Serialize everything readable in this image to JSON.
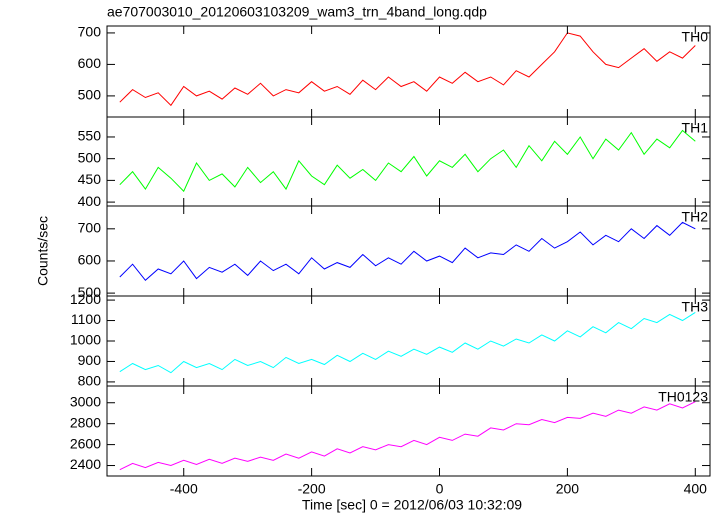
{
  "chart_data": [
    {
      "type": "line",
      "title": "ae707003010_20120603103209_wam3_trn_4band_long.qdp",
      "x": [
        -500,
        -480,
        -460,
        -440,
        -420,
        -400,
        -380,
        -360,
        -340,
        -320,
        -300,
        -280,
        -260,
        -240,
        -220,
        -200,
        -180,
        -160,
        -140,
        -120,
        -100,
        -80,
        -60,
        -40,
        -20,
        0,
        20,
        40,
        60,
        80,
        100,
        120,
        140,
        160,
        180,
        200,
        220,
        240,
        260,
        280,
        300,
        320,
        340,
        360,
        380,
        400
      ],
      "series": [
        {
          "name": "TH0",
          "color": "#ff0000",
          "values": [
            480,
            520,
            495,
            510,
            470,
            530,
            500,
            515,
            490,
            525,
            505,
            540,
            500,
            520,
            510,
            545,
            515,
            530,
            505,
            550,
            520,
            560,
            530,
            545,
            515,
            560,
            540,
            575,
            545,
            560,
            535,
            580,
            560,
            600,
            640,
            700,
            690,
            640,
            600,
            590,
            620,
            650,
            610,
            640,
            620,
            660
          ]
        }
      ],
      "ylim": [
        433,
        722
      ],
      "yticks": [
        500,
        600,
        700
      ]
    },
    {
      "type": "line",
      "x": [
        -500,
        -480,
        -460,
        -440,
        -420,
        -400,
        -380,
        -360,
        -340,
        -320,
        -300,
        -280,
        -260,
        -240,
        -220,
        -200,
        -180,
        -160,
        -140,
        -120,
        -100,
        -80,
        -60,
        -40,
        -20,
        0,
        20,
        40,
        60,
        80,
        100,
        120,
        140,
        160,
        180,
        200,
        220,
        240,
        260,
        280,
        300,
        320,
        340,
        360,
        380,
        400
      ],
      "series": [
        {
          "name": "TH1",
          "color": "#00ff00",
          "values": [
            440,
            470,
            430,
            480,
            455,
            425,
            490,
            450,
            465,
            435,
            480,
            445,
            470,
            430,
            495,
            460,
            440,
            485,
            455,
            475,
            450,
            490,
            470,
            505,
            460,
            495,
            480,
            510,
            470,
            500,
            520,
            480,
            530,
            495,
            540,
            510,
            550,
            500,
            545,
            520,
            560,
            510,
            545,
            525,
            565,
            540
          ]
        }
      ],
      "ylim": [
        391,
        596
      ],
      "yticks": [
        400,
        450,
        500,
        550
      ]
    },
    {
      "type": "line",
      "ylabel": "Counts/sec",
      "x": [
        -500,
        -480,
        -460,
        -440,
        -420,
        -400,
        -380,
        -360,
        -340,
        -320,
        -300,
        -280,
        -260,
        -240,
        -220,
        -200,
        -180,
        -160,
        -140,
        -120,
        -100,
        -80,
        -60,
        -40,
        -20,
        0,
        20,
        40,
        60,
        80,
        100,
        120,
        140,
        160,
        180,
        200,
        220,
        240,
        260,
        280,
        300,
        320,
        340,
        360,
        380,
        400
      ],
      "series": [
        {
          "name": "TH2",
          "color": "#0000ff",
          "values": [
            550,
            590,
            540,
            575,
            560,
            600,
            545,
            580,
            565,
            590,
            555,
            600,
            570,
            590,
            560,
            610,
            575,
            595,
            580,
            620,
            585,
            610,
            590,
            630,
            600,
            615,
            595,
            640,
            610,
            625,
            620,
            650,
            630,
            670,
            640,
            660,
            690,
            650,
            680,
            660,
            700,
            670,
            710,
            680,
            720,
            700
          ]
        }
      ],
      "ylim": [
        491,
        771
      ],
      "yticks": [
        500,
        600,
        700
      ]
    },
    {
      "type": "line",
      "x": [
        -500,
        -480,
        -460,
        -440,
        -420,
        -400,
        -380,
        -360,
        -340,
        -320,
        -300,
        -280,
        -260,
        -240,
        -220,
        -200,
        -180,
        -160,
        -140,
        -120,
        -100,
        -80,
        -60,
        -40,
        -20,
        0,
        20,
        40,
        60,
        80,
        100,
        120,
        140,
        160,
        180,
        200,
        220,
        240,
        260,
        280,
        300,
        320,
        340,
        360,
        380,
        400
      ],
      "series": [
        {
          "name": "TH3",
          "color": "#00ffff",
          "values": [
            850,
            890,
            860,
            880,
            845,
            900,
            870,
            890,
            860,
            910,
            880,
            900,
            870,
            920,
            890,
            910,
            885,
            930,
            900,
            940,
            910,
            950,
            925,
            960,
            935,
            970,
            945,
            990,
            960,
            1000,
            975,
            1010,
            990,
            1030,
            1000,
            1050,
            1020,
            1070,
            1040,
            1090,
            1060,
            1110,
            1090,
            1130,
            1100,
            1140
          ]
        }
      ],
      "ylim": [
        780,
        1220
      ],
      "yticks": [
        800,
        900,
        1000,
        1100,
        1200
      ]
    },
    {
      "type": "line",
      "xlabel": "Time [sec] 0 = 2012/06/03 10:32:09",
      "x": [
        -500,
        -480,
        -460,
        -440,
        -420,
        -400,
        -380,
        -360,
        -340,
        -320,
        -300,
        -280,
        -260,
        -240,
        -220,
        -200,
        -180,
        -160,
        -140,
        -120,
        -100,
        -80,
        -60,
        -40,
        -20,
        0,
        20,
        40,
        60,
        80,
        100,
        120,
        140,
        160,
        180,
        200,
        220,
        240,
        260,
        280,
        300,
        320,
        340,
        360,
        380,
        400
      ],
      "series": [
        {
          "name": "TH0123",
          "color": "#ff00ff",
          "values": [
            2360,
            2420,
            2380,
            2430,
            2400,
            2450,
            2410,
            2460,
            2420,
            2470,
            2440,
            2480,
            2450,
            2510,
            2470,
            2530,
            2490,
            2560,
            2520,
            2580,
            2550,
            2600,
            2580,
            2640,
            2600,
            2670,
            2640,
            2700,
            2680,
            2760,
            2740,
            2800,
            2790,
            2840,
            2810,
            2860,
            2850,
            2900,
            2870,
            2930,
            2900,
            2960,
            2930,
            2990,
            2950,
            3010
          ]
        }
      ],
      "ylim": [
        2300,
        3160
      ],
      "yticks": [
        2400,
        2600,
        2800,
        3000
      ],
      "xlim": [
        -520,
        423
      ],
      "xticks": [
        -400,
        -200,
        0,
        200,
        400
      ]
    }
  ]
}
